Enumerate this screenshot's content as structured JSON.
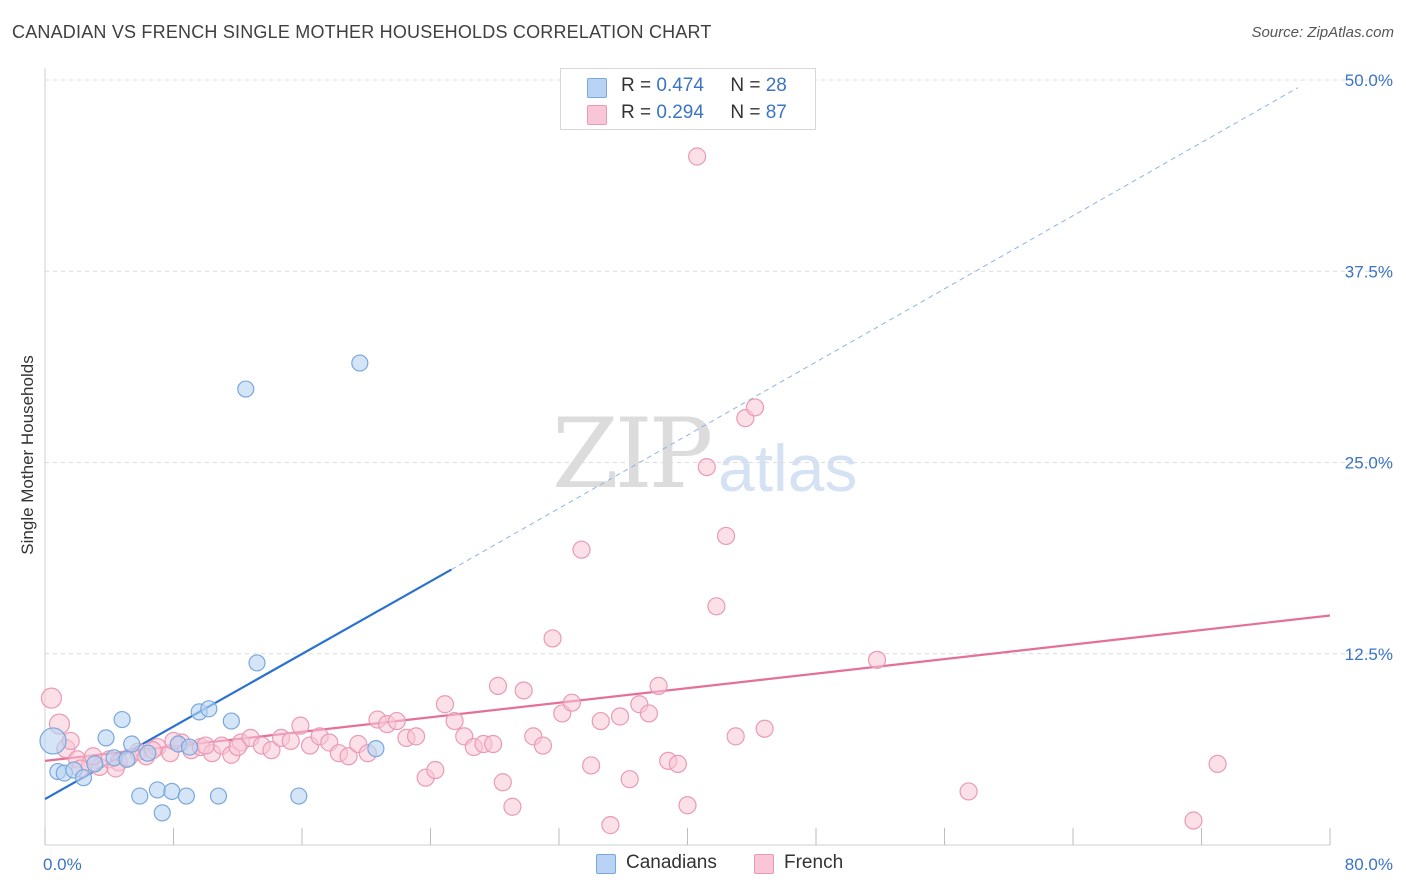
{
  "title": "CANADIAN VS FRENCH SINGLE MOTHER HOUSEHOLDS CORRELATION CHART",
  "source": "Source: ZipAtlas.com",
  "watermark": {
    "zip": "ZIP",
    "atlas": "atlas"
  },
  "legend": {
    "canadians": {
      "r_label": "R =",
      "r": "0.474",
      "n_label": "N =",
      "n": "28"
    },
    "french": {
      "r_label": "R =",
      "r": "0.294",
      "n_label": "N =",
      "n": "87"
    }
  },
  "bottom_legend": {
    "canadians": "Canadians",
    "french": "French"
  },
  "colors": {
    "canadians_fill": "#b8d3f3",
    "canadians_stroke": "#7aa7dc",
    "canadians_line": "#2b72d0",
    "french_fill": "#f8c6d6",
    "french_stroke": "#ea9ab5",
    "french_line": "#e4709a",
    "grid": "#dcdcdc",
    "tick_label": "#3b74c4"
  },
  "chart_data": {
    "type": "scatter",
    "title": "CANADIAN VS FRENCH SINGLE MOTHER HOUSEHOLDS CORRELATION CHART",
    "xlabel": "",
    "ylabel": "Single Mother Households",
    "xlim": [
      0,
      80
    ],
    "ylim": [
      0,
      50
    ],
    "x_tick_labels": [
      "0.0%",
      "80.0%"
    ],
    "y_ticks": [
      12.5,
      25.0,
      37.5,
      50.0
    ],
    "y_tick_labels": [
      "12.5%",
      "25.0%",
      "37.5%",
      "50.0%"
    ],
    "grid": true,
    "series": [
      {
        "name": "Canadians",
        "points": [
          [
            0.5,
            6.8
          ],
          [
            0.8,
            4.8
          ],
          [
            1.2,
            4.7
          ],
          [
            1.8,
            4.9
          ],
          [
            2.4,
            4.4
          ],
          [
            3.1,
            5.3
          ],
          [
            3.8,
            7.0
          ],
          [
            4.3,
            5.7
          ],
          [
            4.8,
            8.2
          ],
          [
            5.4,
            6.6
          ],
          [
            6.4,
            6.0
          ],
          [
            8.3,
            6.6
          ],
          [
            9.0,
            6.4
          ],
          [
            9.6,
            8.7
          ],
          [
            10.2,
            8.9
          ],
          [
            11.6,
            8.1
          ],
          [
            5.9,
            3.2
          ],
          [
            7.0,
            3.6
          ],
          [
            7.9,
            3.5
          ],
          [
            8.8,
            3.2
          ],
          [
            10.8,
            3.2
          ],
          [
            7.3,
            2.1
          ],
          [
            15.8,
            3.2
          ],
          [
            13.2,
            11.9
          ],
          [
            12.5,
            29.8
          ],
          [
            19.6,
            31.5
          ],
          [
            20.6,
            6.3
          ],
          [
            5.1,
            5.6
          ]
        ],
        "trend": {
          "x": [
            0,
            25.3
          ],
          "y": [
            3.0,
            18.0
          ]
        },
        "trend_extended": {
          "x": [
            25.3,
            78.0
          ],
          "y": [
            18.0,
            49.5
          ]
        }
      },
      {
        "name": "French",
        "points": [
          [
            0.4,
            9.6
          ],
          [
            0.9,
            7.9
          ],
          [
            1.3,
            6.3
          ],
          [
            2.0,
            5.6
          ],
          [
            2.8,
            5.3
          ],
          [
            3.4,
            5.1
          ],
          [
            4.0,
            5.6
          ],
          [
            4.6,
            5.4
          ],
          [
            5.2,
            5.7
          ],
          [
            5.8,
            6.1
          ],
          [
            6.3,
            5.8
          ],
          [
            7.0,
            6.4
          ],
          [
            7.8,
            6.0
          ],
          [
            8.5,
            6.7
          ],
          [
            9.1,
            6.2
          ],
          [
            9.7,
            6.4
          ],
          [
            10.4,
            6.0
          ],
          [
            11.0,
            6.5
          ],
          [
            11.6,
            5.9
          ],
          [
            12.2,
            6.7
          ],
          [
            12.8,
            7.0
          ],
          [
            13.5,
            6.5
          ],
          [
            14.1,
            6.2
          ],
          [
            14.7,
            7.0
          ],
          [
            15.3,
            6.8
          ],
          [
            15.9,
            7.8
          ],
          [
            16.5,
            6.5
          ],
          [
            17.1,
            7.1
          ],
          [
            17.7,
            6.7
          ],
          [
            18.3,
            6.0
          ],
          [
            18.9,
            5.8
          ],
          [
            19.5,
            6.6
          ],
          [
            20.1,
            6.0
          ],
          [
            20.7,
            8.2
          ],
          [
            21.3,
            7.9
          ],
          [
            21.9,
            8.1
          ],
          [
            22.5,
            7.0
          ],
          [
            23.1,
            7.1
          ],
          [
            23.7,
            4.4
          ],
          [
            24.3,
            4.9
          ],
          [
            24.9,
            9.2
          ],
          [
            25.5,
            8.1
          ],
          [
            26.1,
            7.1
          ],
          [
            26.7,
            6.4
          ],
          [
            27.3,
            6.6
          ],
          [
            27.9,
            6.6
          ],
          [
            28.5,
            4.1
          ],
          [
            29.1,
            2.5
          ],
          [
            28.2,
            10.4
          ],
          [
            29.8,
            10.1
          ],
          [
            30.4,
            7.1
          ],
          [
            31.0,
            6.5
          ],
          [
            31.6,
            13.5
          ],
          [
            32.2,
            8.6
          ],
          [
            32.8,
            9.3
          ],
          [
            33.4,
            19.3
          ],
          [
            34.0,
            5.2
          ],
          [
            34.6,
            8.1
          ],
          [
            35.2,
            1.3
          ],
          [
            35.8,
            8.4
          ],
          [
            36.4,
            4.3
          ],
          [
            37.0,
            9.2
          ],
          [
            37.6,
            8.6
          ],
          [
            38.2,
            10.4
          ],
          [
            38.8,
            5.5
          ],
          [
            39.4,
            5.3
          ],
          [
            40.0,
            2.6
          ],
          [
            40.6,
            45.0
          ],
          [
            41.2,
            24.7
          ],
          [
            41.8,
            15.6
          ],
          [
            42.4,
            20.2
          ],
          [
            43.0,
            7.1
          ],
          [
            43.6,
            27.9
          ],
          [
            44.2,
            28.6
          ],
          [
            44.8,
            7.6
          ],
          [
            51.8,
            12.1
          ],
          [
            57.5,
            3.5
          ],
          [
            71.5,
            1.6
          ],
          [
            73.0,
            5.3
          ],
          [
            1.6,
            6.8
          ],
          [
            2.2,
            5.0
          ],
          [
            3.0,
            5.8
          ],
          [
            4.4,
            5.0
          ],
          [
            6.7,
            6.2
          ],
          [
            8.0,
            6.8
          ],
          [
            10.0,
            6.5
          ],
          [
            12.0,
            6.4
          ]
        ],
        "trend": {
          "x": [
            0,
            80
          ],
          "y": [
            5.5,
            15.0
          ]
        }
      }
    ]
  }
}
